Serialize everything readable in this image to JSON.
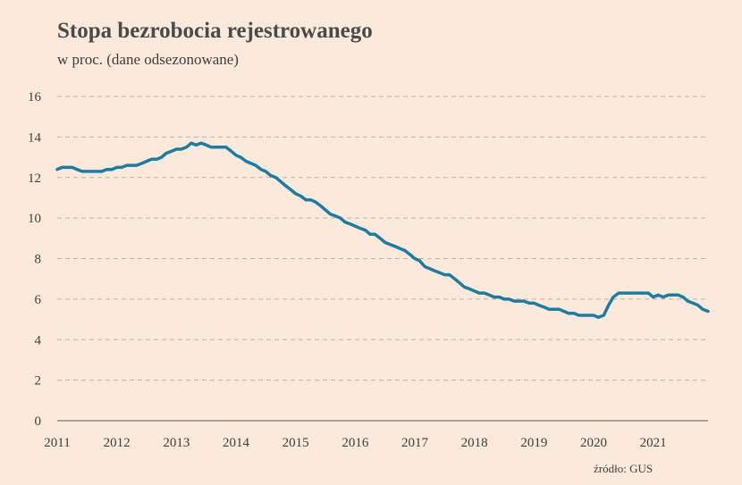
{
  "chart_data": {
    "type": "line",
    "title": "Stopa bezrobocia rejestrowanego",
    "subtitle": "w proc. (dane odsezonowane)",
    "source": "źródło: GUS",
    "xlabel": "",
    "ylabel": "",
    "ylim": [
      0,
      16
    ],
    "yticks": [
      0,
      2,
      4,
      6,
      8,
      10,
      12,
      14,
      16
    ],
    "xlim": [
      2011.0,
      2021.92
    ],
    "xticks": [
      {
        "value": 2011,
        "label": "2011"
      },
      {
        "value": 2012,
        "label": "2012"
      },
      {
        "value": 2013,
        "label": "2013"
      },
      {
        "value": 2014,
        "label": "2014"
      },
      {
        "value": 2015,
        "label": "2015"
      },
      {
        "value": 2016,
        "label": "2016"
      },
      {
        "value": 2017,
        "label": "2017"
      },
      {
        "value": 2018,
        "label": "2018"
      },
      {
        "value": 2019,
        "label": "2019"
      },
      {
        "value": 2020,
        "label": "2020"
      },
      {
        "value": 2021,
        "label": "2021"
      }
    ],
    "grid": true,
    "colors": {
      "series": "#1e7ba1",
      "background": "#fbeadb"
    },
    "series": [
      {
        "x": [
          2011.0,
          2011.08,
          2011.17,
          2011.25,
          2011.33,
          2011.42,
          2011.5,
          2011.58,
          2011.67,
          2011.75,
          2011.83,
          2011.92,
          2012.0,
          2012.08,
          2012.17,
          2012.25,
          2012.33,
          2012.42,
          2012.5,
          2012.58,
          2012.67,
          2012.75,
          2012.83,
          2012.92,
          2013.0,
          2013.08,
          2013.17,
          2013.25,
          2013.33,
          2013.42,
          2013.5,
          2013.58,
          2013.67,
          2013.75,
          2013.83,
          2013.92,
          2014.0,
          2014.08,
          2014.17,
          2014.25,
          2014.33,
          2014.42,
          2014.5,
          2014.58,
          2014.67,
          2014.75,
          2014.83,
          2014.92,
          2015.0,
          2015.08,
          2015.17,
          2015.25,
          2015.33,
          2015.42,
          2015.5,
          2015.58,
          2015.67,
          2015.75,
          2015.83,
          2015.92,
          2016.0,
          2016.08,
          2016.17,
          2016.25,
          2016.33,
          2016.42,
          2016.5,
          2016.58,
          2016.67,
          2016.75,
          2016.83,
          2016.92,
          2017.0,
          2017.08,
          2017.17,
          2017.25,
          2017.33,
          2017.42,
          2017.5,
          2017.58,
          2017.67,
          2017.75,
          2017.83,
          2017.92,
          2018.0,
          2018.08,
          2018.17,
          2018.25,
          2018.33,
          2018.42,
          2018.5,
          2018.58,
          2018.67,
          2018.75,
          2018.83,
          2018.92,
          2019.0,
          2019.08,
          2019.17,
          2019.25,
          2019.33,
          2019.42,
          2019.5,
          2019.58,
          2019.67,
          2019.75,
          2019.83,
          2019.92,
          2020.0,
          2020.08,
          2020.17,
          2020.25,
          2020.33,
          2020.42,
          2020.5,
          2020.58,
          2020.67,
          2020.75,
          2020.83,
          2020.92,
          2021.0,
          2021.08,
          2021.17,
          2021.25,
          2021.33,
          2021.42,
          2021.5,
          2021.58,
          2021.67,
          2021.75,
          2021.83,
          2021.92
        ],
        "values": [
          12.4,
          12.5,
          12.5,
          12.5,
          12.4,
          12.3,
          12.3,
          12.3,
          12.3,
          12.3,
          12.4,
          12.4,
          12.5,
          12.5,
          12.6,
          12.6,
          12.6,
          12.7,
          12.8,
          12.9,
          12.9,
          13.0,
          13.2,
          13.3,
          13.4,
          13.4,
          13.5,
          13.7,
          13.6,
          13.7,
          13.6,
          13.5,
          13.5,
          13.5,
          13.5,
          13.3,
          13.1,
          13.0,
          12.8,
          12.7,
          12.6,
          12.4,
          12.3,
          12.1,
          12.0,
          11.8,
          11.6,
          11.4,
          11.2,
          11.1,
          10.9,
          10.9,
          10.8,
          10.6,
          10.4,
          10.2,
          10.1,
          10.0,
          9.8,
          9.7,
          9.6,
          9.5,
          9.4,
          9.2,
          9.2,
          9.0,
          8.8,
          8.7,
          8.6,
          8.5,
          8.4,
          8.2,
          8.0,
          7.9,
          7.6,
          7.5,
          7.4,
          7.3,
          7.2,
          7.2,
          7.0,
          6.8,
          6.6,
          6.5,
          6.4,
          6.3,
          6.3,
          6.2,
          6.1,
          6.1,
          6.0,
          6.0,
          5.9,
          5.9,
          5.9,
          5.8,
          5.8,
          5.7,
          5.6,
          5.5,
          5.5,
          5.5,
          5.4,
          5.3,
          5.3,
          5.2,
          5.2,
          5.2,
          5.2,
          5.1,
          5.2,
          5.7,
          6.1,
          6.3,
          6.3,
          6.3,
          6.3,
          6.3,
          6.3,
          6.3,
          6.1,
          6.2,
          6.1,
          6.2,
          6.2,
          6.2,
          6.1,
          5.9,
          5.8,
          5.7,
          5.5,
          5.4
        ]
      }
    ]
  }
}
